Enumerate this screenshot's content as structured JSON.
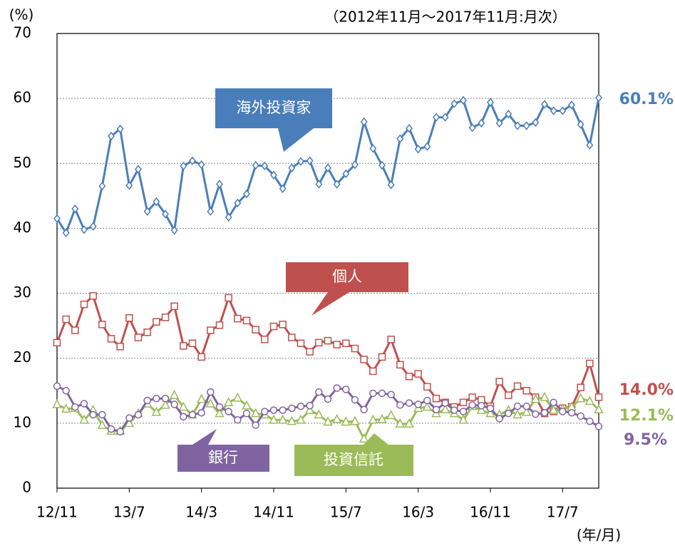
{
  "chart_data": {
    "type": "line",
    "title": "（2012年11月～2017年11月:月次）",
    "y_label": "(%)",
    "x_label": "(年/月)",
    "categories": [
      "12/11",
      null,
      null,
      null,
      null,
      null,
      null,
      null,
      "13/7",
      null,
      null,
      null,
      null,
      null,
      null,
      null,
      "14/3",
      null,
      null,
      null,
      null,
      null,
      null,
      null,
      "14/11",
      null,
      null,
      null,
      null,
      null,
      null,
      null,
      "15/7",
      null,
      null,
      null,
      null,
      null,
      null,
      null,
      "16/3",
      null,
      null,
      null,
      null,
      null,
      null,
      null,
      "16/11",
      null,
      null,
      null,
      null,
      null,
      null,
      null,
      "17/7",
      null,
      null,
      null,
      null
    ],
    "ylim": [
      0,
      70
    ],
    "yticks": [
      0,
      10,
      20,
      30,
      40,
      50,
      60,
      70
    ],
    "grid": true,
    "series": [
      {
        "name": "海外投資家",
        "color": "#4a7ebb",
        "marker": "diamond",
        "end_label": "60.1%",
        "values": [
          41.5,
          39.3,
          43,
          39.8,
          40.3,
          46.5,
          54.2,
          55.3,
          46.6,
          49.1,
          42.6,
          44.1,
          42.2,
          39.7,
          49.6,
          50.4,
          49.8,
          42.6,
          46.8,
          41.7,
          43.9,
          45.3,
          49.7,
          49.6,
          48.2,
          46.1,
          49.3,
          50.3,
          50.4,
          46.8,
          49.3,
          46.8,
          48.4,
          49.8,
          56.4,
          52.3,
          49.7,
          46.7,
          53.8,
          55.4,
          52.2,
          52.6,
          57.1,
          57.1,
          59.2,
          59.7,
          55.5,
          56.2,
          59.4,
          56.2,
          57.6,
          55.8,
          55.8,
          56.3,
          59.1,
          58.1,
          58.1,
          59.0,
          56.0,
          52.8,
          60.1
        ]
      },
      {
        "name": "個人",
        "color": "#c0504d",
        "marker": "square",
        "end_label": "14.0%",
        "values": [
          22.4,
          26.0,
          24.3,
          28.3,
          29.6,
          25.2,
          23.0,
          21.8,
          26.2,
          23.2,
          24.0,
          25.6,
          26.3,
          28.0,
          21.9,
          22.3,
          20.2,
          24.3,
          25.1,
          29.3,
          26.1,
          25.8,
          24.4,
          22.9,
          24.9,
          25.2,
          23.2,
          22.3,
          21.0,
          22.4,
          22.7,
          22.1,
          22.3,
          21.5,
          19.8,
          18.0,
          20.2,
          22.9,
          19.0,
          17.2,
          17.6,
          15.6,
          13.8,
          13.2,
          12.5,
          13.2,
          14.0,
          13.6,
          12.6,
          16.4,
          14.3,
          15.7,
          15.0,
          14.0,
          11.5,
          11.8,
          12.3,
          12.5,
          15.5,
          19.2,
          14.0
        ]
      },
      {
        "name": "投資信託",
        "color": "#9bbb59",
        "marker": "triangle",
        "end_label": "12.1%",
        "values": [
          12.9,
          12.2,
          12.3,
          10.5,
          12.0,
          9.7,
          8.8,
          8.8,
          10.0,
          11.5,
          13.0,
          11.7,
          12.8,
          14.3,
          12.5,
          11.3,
          13.7,
          13.0,
          11.5,
          13.2,
          13.9,
          12.7,
          11.5,
          11.3,
          10.5,
          10.5,
          10.3,
          10.5,
          12.0,
          11.3,
          10.2,
          10.6,
          10.2,
          10.3,
          7.6,
          10.5,
          10.6,
          11.2,
          9.9,
          9.9,
          12.3,
          12.5,
          11.5,
          12.1,
          11.5,
          10.5,
          12.6,
          12.0,
          11.5,
          11.3,
          12.0,
          11.3,
          11.7,
          13.7,
          14.0,
          12.0,
          12.2,
          12.5,
          13.8,
          13.4,
          12.1
        ]
      },
      {
        "name": "銀行",
        "color": "#8064a2",
        "marker": "circle",
        "end_label": "9.5%",
        "values": [
          15.7,
          15.0,
          12.5,
          13.0,
          11.3,
          11.3,
          9.1,
          8.7,
          10.8,
          11.3,
          13.5,
          13.8,
          13.8,
          12.9,
          11.0,
          11.3,
          11.6,
          14.8,
          12.5,
          11.8,
          10.5,
          11.5,
          9.7,
          11.8,
          12.0,
          12.0,
          12.3,
          12.6,
          12.7,
          14.8,
          13.7,
          15.4,
          15.2,
          13.6,
          12.1,
          14.6,
          14.6,
          14.4,
          12.8,
          13.1,
          12.9,
          13.5,
          12.1,
          13.1,
          12.0,
          11.8,
          12.8,
          12.7,
          12.3,
          10.7,
          11.5,
          12.6,
          12.6,
          11.4,
          11.6,
          13.2,
          11.8,
          11.6,
          11.1,
          10.3,
          9.5
        ]
      }
    ]
  }
}
